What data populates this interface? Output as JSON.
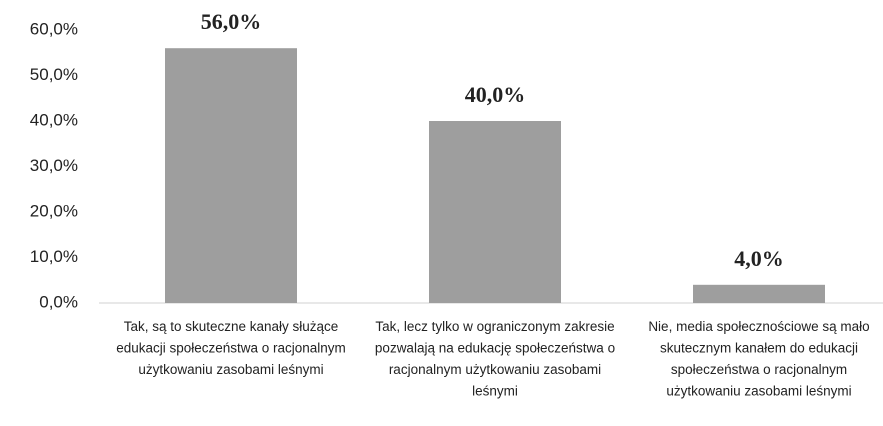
{
  "chart_data": {
    "type": "bar",
    "categories": [
      "Tak, są to skuteczne kanały służące edukacji społeczeństwa o racjonalnym użytkowaniu zasobami leśnymi",
      "Tak, lecz tylko w ograniczonym zakresie pozwalają na edukację społeczeństwa o racjonalnym użytkowaniu zasobami leśnymi",
      "Nie, media społecznościowe są mało skutecznym kanałem do edukacji społeczeństwa o racjonalnym użytkowaniu zasobami leśnymi"
    ],
    "values": [
      56,
      40,
      4
    ],
    "value_labels": [
      "56,0%",
      "40,0%",
      "4,0%"
    ],
    "color": "#9e9e9e",
    "ylim": [
      0,
      60
    ],
    "yticks": [
      {
        "value": 0,
        "label": "0,0%"
      },
      {
        "value": 10,
        "label": "10,0%"
      },
      {
        "value": 20,
        "label": "20,0%"
      },
      {
        "value": 30,
        "label": "30,0%"
      },
      {
        "value": 40,
        "label": "40,0%"
      },
      {
        "value": 50,
        "label": "50,0%"
      },
      {
        "value": 60,
        "label": "60,0%"
      }
    ],
    "grid": false
  }
}
